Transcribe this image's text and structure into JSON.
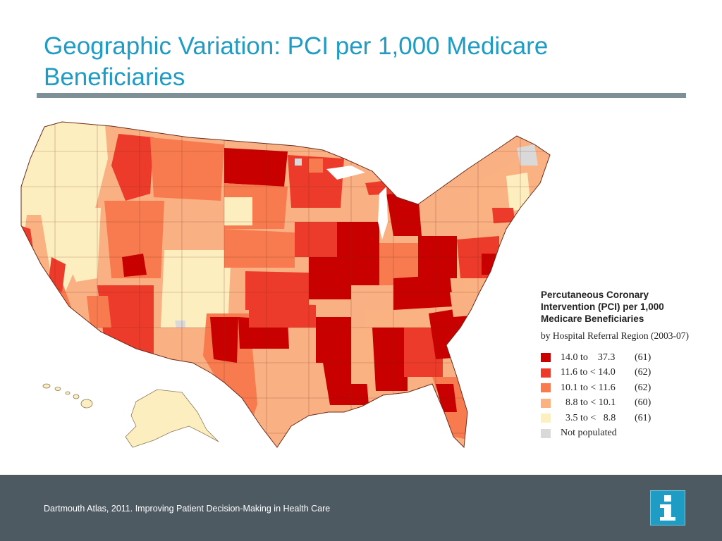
{
  "slide": {
    "title": "Geographic Variation: PCI per 1,000 Medicare Beneficiaries"
  },
  "legend": {
    "title_lines": [
      "Percutaneous Coronary",
      "Intervention (PCI) per 1,000",
      "Medicare Beneficiaries"
    ],
    "subtitle": "by Hospital Referral Region (2003-07)",
    "items": [
      {
        "range": "14.0 to    37.3",
        "count": "(61)",
        "color": "#c80000"
      },
      {
        "range": "11.6 to < 14.0",
        "count": "(62)",
        "color": "#ec3b2b"
      },
      {
        "range": "10.1 to < 11.6",
        "count": "(62)",
        "color": "#f77b4f"
      },
      {
        "range": "  8.8 to < 10.1",
        "count": "(60)",
        "color": "#fbb283"
      },
      {
        "range": "  3.5 to <   8.8",
        "count": "(61)",
        "color": "#fdf0c0"
      },
      {
        "range": "Not populated",
        "count": "",
        "color": "#d9d9d9"
      }
    ]
  },
  "footer": {
    "citation": "Dartmouth Atlas, 2011. Improving Patient Decision-Making in Health Care",
    "logo_icon": "info-icon"
  },
  "colors": {
    "title": "#1e9cc3",
    "rule": "#7d8f97",
    "footer_bg": "#4d5a62"
  }
}
